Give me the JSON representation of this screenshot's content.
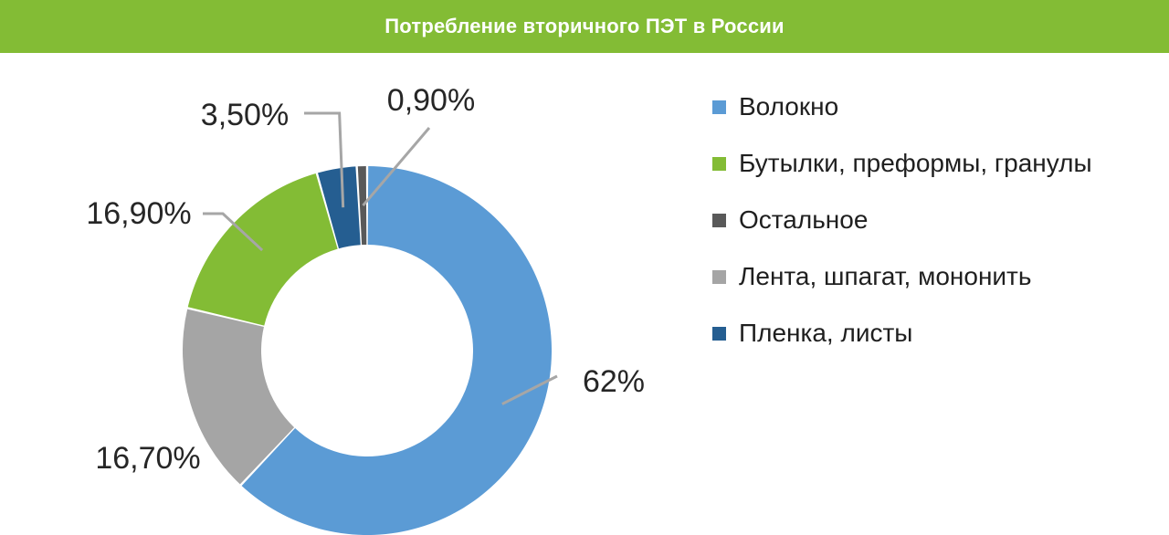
{
  "chart_data": {
    "type": "pie",
    "title": "Потребление вторичного ПЭТ в России",
    "series": [
      {
        "name": "Волокно",
        "value": 62,
        "label": "62%",
        "color": "#5b9bd5"
      },
      {
        "name": "Бутылки, преформы, гранулы",
        "value": 16.9,
        "label": "16,90%",
        "color": "#83bc35"
      },
      {
        "name": "Остальное",
        "value": 0.9,
        "label": "0,90%",
        "color": "#595959"
      },
      {
        "name": "Лента, шпагат, мононить",
        "value": 16.7,
        "label": "16,70%",
        "color": "#a5a5a5"
      },
      {
        "name": "Пленка, листы",
        "value": 3.5,
        "label": "3,50%",
        "color": "#255e91"
      }
    ],
    "legend_position": "right",
    "donut": true
  }
}
